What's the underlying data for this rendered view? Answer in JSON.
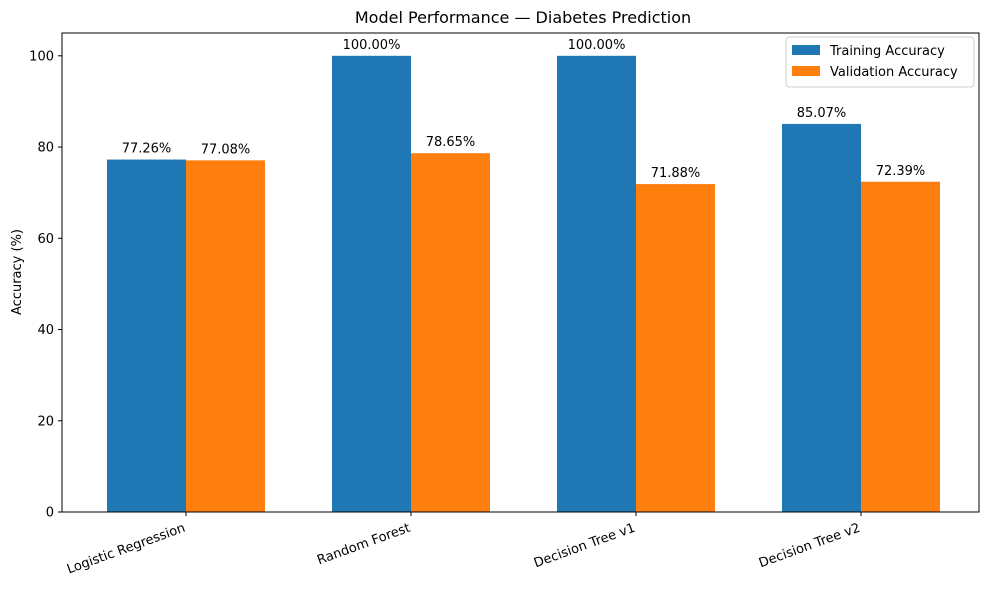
{
  "chart_data": {
    "type": "bar",
    "title": "Model Performance — Diabetes Prediction",
    "xlabel": "",
    "ylabel": "Accuracy (%)",
    "ylim": [
      0,
      105
    ],
    "yticks": [
      0,
      20,
      40,
      60,
      80,
      100
    ],
    "grid": false,
    "legend_position": "top-right",
    "categories": [
      "Logistic Regression",
      "Random Forest",
      "Decision Tree v1",
      "Decision Tree v2"
    ],
    "series": [
      {
        "name": "Training Accuracy",
        "color": "#1f77b4",
        "values": [
          77.26,
          100.0,
          100.0,
          85.07
        ],
        "labels": [
          "77.26%",
          "100.00%",
          "100.00%",
          "85.07%"
        ]
      },
      {
        "name": "Validation Accuracy",
        "color": "#ff7f0e",
        "values": [
          77.08,
          78.65,
          71.88,
          72.39
        ],
        "labels": [
          "77.08%",
          "78.65%",
          "71.88%",
          "72.39%"
        ]
      }
    ]
  }
}
